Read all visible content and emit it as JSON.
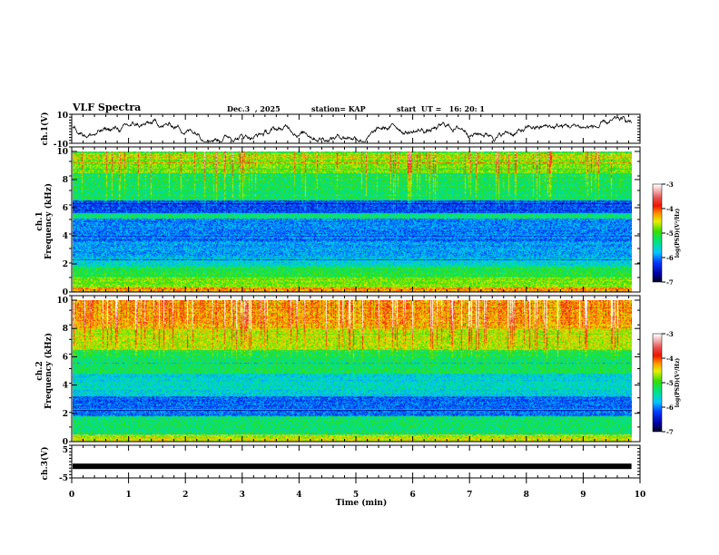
{
  "header": {
    "title": "VLF Spectra",
    "date": "Dec.3  , 2025",
    "station": "station= KAP",
    "start_ut": "start  UT =   16: 20: 1"
  },
  "chart_data": [
    {
      "type": "line",
      "panel": "ch1-waveform",
      "ylabel": "ch.1(V)",
      "ylim": [
        -10,
        10
      ],
      "yticks": [
        "10",
        "-10"
      ],
      "xlim": [
        0,
        10
      ],
      "x_data_end": 9.85,
      "description": "noisy waveform fluctuating roughly between -9 and 8 V"
    },
    {
      "type": "heatmap",
      "panel": "ch1-spectrogram",
      "ylabel_line1": "ch.1",
      "ylabel_line2": "Frequency (kHz)",
      "ylim": [
        0,
        10
      ],
      "yticks": [
        "0",
        "2",
        "4",
        "6",
        "8",
        "10"
      ],
      "xlim": [
        0,
        10
      ],
      "x_data_end": 9.85,
      "colorbar": {
        "label": "log(PSD)(V²/Hz)",
        "range": [
          -7,
          -3
        ],
        "ticks": [
          "-3",
          "-4",
          "-5",
          "-6",
          "-7"
        ]
      },
      "bands_khz": [
        {
          "from": 0.0,
          "to": 0.3,
          "level": -4.2
        },
        {
          "from": 0.3,
          "to": 1.0,
          "level": -4.8
        },
        {
          "from": 1.0,
          "to": 1.8,
          "level": -5.1
        },
        {
          "from": 1.8,
          "to": 2.4,
          "level": -5.6
        },
        {
          "from": 2.4,
          "to": 3.6,
          "level": -5.9
        },
        {
          "from": 3.6,
          "to": 5.2,
          "level": -6.0
        },
        {
          "from": 5.2,
          "to": 5.6,
          "level": -5.3
        },
        {
          "from": 5.6,
          "to": 6.5,
          "level": -6.2
        },
        {
          "from": 6.5,
          "to": 8.5,
          "level": -5.3
        },
        {
          "from": 8.5,
          "to": 10.0,
          "level": -4.9
        }
      ]
    },
    {
      "type": "heatmap",
      "panel": "ch2-spectrogram",
      "ylabel_line1": "ch.2",
      "ylabel_line2": "Frequency (kHz)",
      "ylim": [
        0,
        10
      ],
      "yticks": [
        "0",
        "2",
        "4",
        "6",
        "8",
        "10"
      ],
      "xlim": [
        0,
        10
      ],
      "x_data_end": 9.85,
      "colorbar": {
        "label": "log(PSD)(V²/Hz)",
        "range": [
          -7,
          -3
        ],
        "ticks": [
          "-3",
          "-4",
          "-5",
          "-6",
          "-7"
        ]
      },
      "bands_khz": [
        {
          "from": 0.0,
          "to": 0.5,
          "level": -4.6
        },
        {
          "from": 0.5,
          "to": 1.8,
          "level": -5.3
        },
        {
          "from": 1.8,
          "to": 3.2,
          "level": -6.1
        },
        {
          "from": 3.2,
          "to": 4.8,
          "level": -5.6
        },
        {
          "from": 4.8,
          "to": 6.5,
          "level": -5.2
        },
        {
          "from": 6.5,
          "to": 8.0,
          "level": -4.7
        },
        {
          "from": 8.0,
          "to": 10.0,
          "level": -4.4
        }
      ]
    },
    {
      "type": "line",
      "panel": "ch3-waveform",
      "ylabel": "ch.3(V)",
      "ylim": [
        -5,
        5
      ],
      "yticks": [
        "5",
        "-5"
      ],
      "xlim": [
        0,
        10
      ],
      "x_data_end": 9.85,
      "description": "flat thick trace near -1 V"
    }
  ],
  "xaxis": {
    "label": "Time  (min)",
    "ticks": [
      "0",
      "1",
      "2",
      "3",
      "4",
      "5",
      "6",
      "7",
      "8",
      "9",
      "10"
    ]
  },
  "colors": {
    "waveform": "#000000",
    "axes": "#000000"
  }
}
